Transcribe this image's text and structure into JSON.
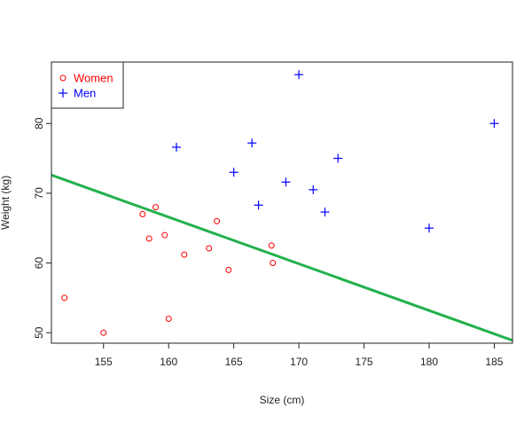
{
  "chart_data": {
    "type": "scatter",
    "title": "",
    "xlabel": "Size (cm)",
    "ylabel": "Weight (kg)",
    "xlim": [
      151,
      186.4
    ],
    "ylim": [
      48.5,
      88.8
    ],
    "xticks": [
      155,
      160,
      165,
      170,
      175,
      180,
      185
    ],
    "yticks": [
      50,
      60,
      70,
      80
    ],
    "grid": false,
    "legend_position": "top-left",
    "series": [
      {
        "name": "Women",
        "marker": "circle",
        "color": "#ff0000",
        "points": [
          {
            "x": 152,
            "y": 55
          },
          {
            "x": 155,
            "y": 50
          },
          {
            "x": 158,
            "y": 67
          },
          {
            "x": 158.5,
            "y": 63.5
          },
          {
            "x": 159,
            "y": 68
          },
          {
            "x": 159.7,
            "y": 64
          },
          {
            "x": 160,
            "y": 52
          },
          {
            "x": 161.2,
            "y": 61.2
          },
          {
            "x": 163.1,
            "y": 62.1
          },
          {
            "x": 163.7,
            "y": 66
          },
          {
            "x": 164.6,
            "y": 59
          },
          {
            "x": 167.9,
            "y": 62.5
          },
          {
            "x": 168,
            "y": 60
          }
        ]
      },
      {
        "name": "Men",
        "marker": "plus",
        "color": "#0000ff",
        "points": [
          {
            "x": 160.6,
            "y": 76.6
          },
          {
            "x": 165,
            "y": 73
          },
          {
            "x": 166.4,
            "y": 77.2
          },
          {
            "x": 166.9,
            "y": 68.3
          },
          {
            "x": 169,
            "y": 71.6
          },
          {
            "x": 170,
            "y": 87
          },
          {
            "x": 171.1,
            "y": 70.5
          },
          {
            "x": 172,
            "y": 67.3
          },
          {
            "x": 173,
            "y": 75
          },
          {
            "x": 180,
            "y": 65
          },
          {
            "x": 185,
            "y": 80
          }
        ]
      }
    ],
    "trend_line": {
      "color": "#22b14c",
      "from": {
        "x": 151,
        "y": 72.6
      },
      "to": {
        "x": 186.4,
        "y": 48.9
      }
    }
  }
}
